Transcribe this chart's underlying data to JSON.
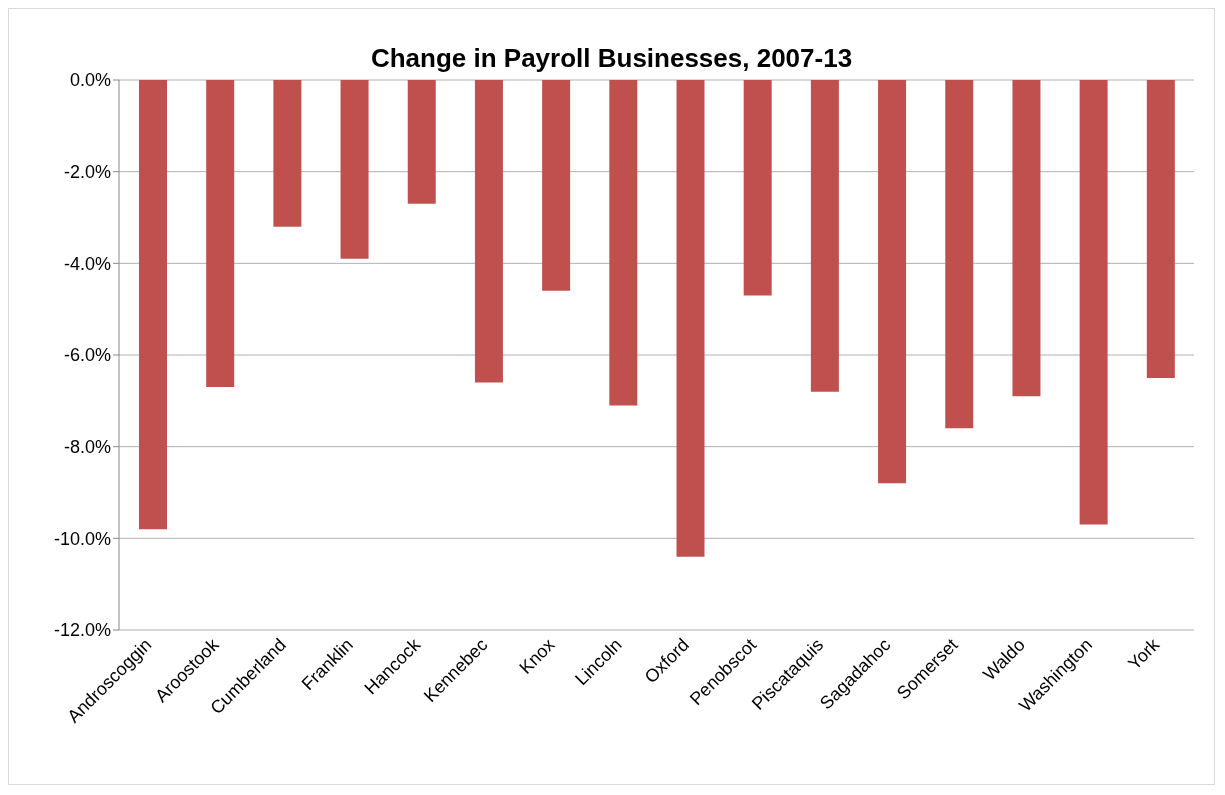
{
  "chart_data": {
    "type": "bar",
    "title": "Change in Payroll Businesses, 2007-13",
    "categories": [
      "Androscoggin",
      "Aroostook",
      "Cumberland",
      "Franklin",
      "Hancock",
      "Kennebec",
      "Knox",
      "Lincoln",
      "Oxford",
      "Penobscot",
      "Piscataquis",
      "Sagadahoc",
      "Somerset",
      "Waldo",
      "Washington",
      "York"
    ],
    "values": [
      -9.8,
      -6.7,
      -3.2,
      -3.9,
      -2.7,
      -6.6,
      -4.6,
      -7.1,
      -10.4,
      -4.7,
      -6.8,
      -8.8,
      -7.6,
      -6.9,
      -9.7,
      -6.5
    ],
    "color": "#c0504d",
    "ylim": [
      -12,
      0
    ],
    "yticks": [
      {
        "value": -12,
        "label": "-12.0%"
      },
      {
        "value": -10,
        "label": "-10.0%"
      },
      {
        "value": -8,
        "label": "-8.0%"
      },
      {
        "value": -6,
        "label": "-6.0%"
      },
      {
        "value": -4,
        "label": "-4.0%"
      },
      {
        "value": -2,
        "label": "-2.0%"
      },
      {
        "value": 0,
        "label": "0.0%"
      }
    ],
    "grid": "y",
    "legend": false
  }
}
